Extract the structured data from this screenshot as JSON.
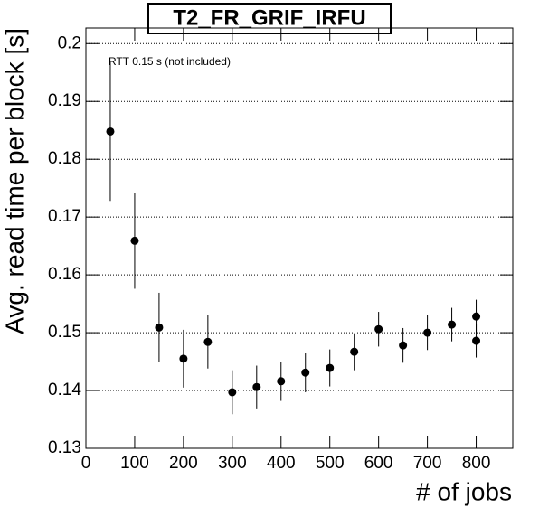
{
  "chart_data": {
    "type": "scatter",
    "title": "T2_FR_GRIF_IRFU",
    "xlabel": "# of jobs",
    "ylabel": "Avg. read time per block [s]",
    "annotation": "RTT 0.15 s (not included)",
    "x": [
      50,
      100,
      150,
      200,
      250,
      300,
      350,
      400,
      450,
      500,
      550,
      600,
      650,
      700,
      750,
      800,
      800
    ],
    "series": [
      {
        "color": "#000000",
        "values": [
          0.1848,
          0.1659,
          0.1509,
          0.1455,
          0.1484,
          0.1397,
          0.1406,
          0.1416,
          0.1431,
          0.1439,
          0.1467,
          0.1506,
          0.1478,
          0.15,
          0.1514,
          0.1528,
          0.1486
        ],
        "errors": [
          0.012,
          0.0083,
          0.006,
          0.005,
          0.0046,
          0.0038,
          0.0037,
          0.0034,
          0.0034,
          0.0032,
          0.0032,
          0.003,
          0.003,
          0.003,
          0.0029,
          0.0029,
          0.0029
        ]
      }
    ],
    "xlim": [
      0,
      875
    ],
    "xticks": [
      0,
      100,
      200,
      300,
      400,
      500,
      600,
      700,
      800
    ],
    "ylim": [
      0.13,
      0.2027
    ],
    "yticks": [
      0.13,
      0.14,
      0.15,
      0.16,
      0.17,
      0.18,
      0.19,
      0.2
    ],
    "grid": "y"
  }
}
